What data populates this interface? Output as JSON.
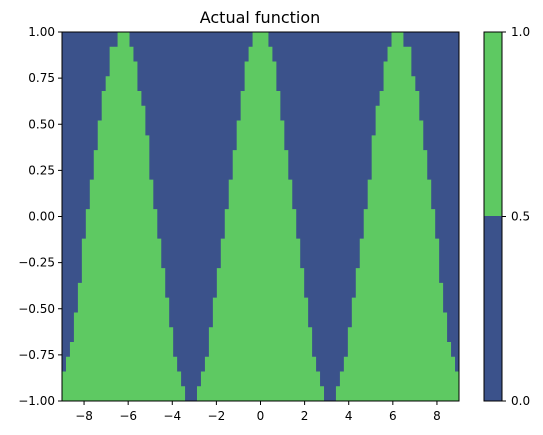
{
  "chart_data": {
    "type": "heatmap",
    "title": "Actual function",
    "function": "sign-level of 1 if |y| <= cos(x) else 0 (contour of a cosine band)",
    "x_range": [
      -9,
      9
    ],
    "y_range": [
      -1,
      1
    ],
    "x_ticks": [
      -8,
      -6,
      -4,
      -2,
      0,
      2,
      4,
      6,
      8
    ],
    "y_ticks": [
      -1.0,
      -0.75,
      -0.5,
      -0.25,
      0.0,
      0.25,
      0.5,
      0.75,
      1.0
    ],
    "x_tick_labels": [
      "−8",
      "−6",
      "−4",
      "−2",
      "0",
      "2",
      "4",
      "6",
      "8"
    ],
    "y_tick_labels": [
      "−1.00",
      "−0.75",
      "−0.50",
      "−0.25",
      "0.00",
      "0.25",
      "0.50",
      "0.75",
      "1.00"
    ],
    "levels": [
      0.0,
      0.5,
      1.0
    ],
    "colorbar_tick_labels": [
      "0.0",
      "0.5",
      "1.0"
    ],
    "colors": {
      "low": "#3b528b",
      "high": "#5ec962"
    },
    "peaks_x": [
      -6.283,
      0,
      6.283
    ],
    "troughs_x": [
      -3.14,
      3.14
    ],
    "grid": false,
    "colorbar": "right"
  }
}
